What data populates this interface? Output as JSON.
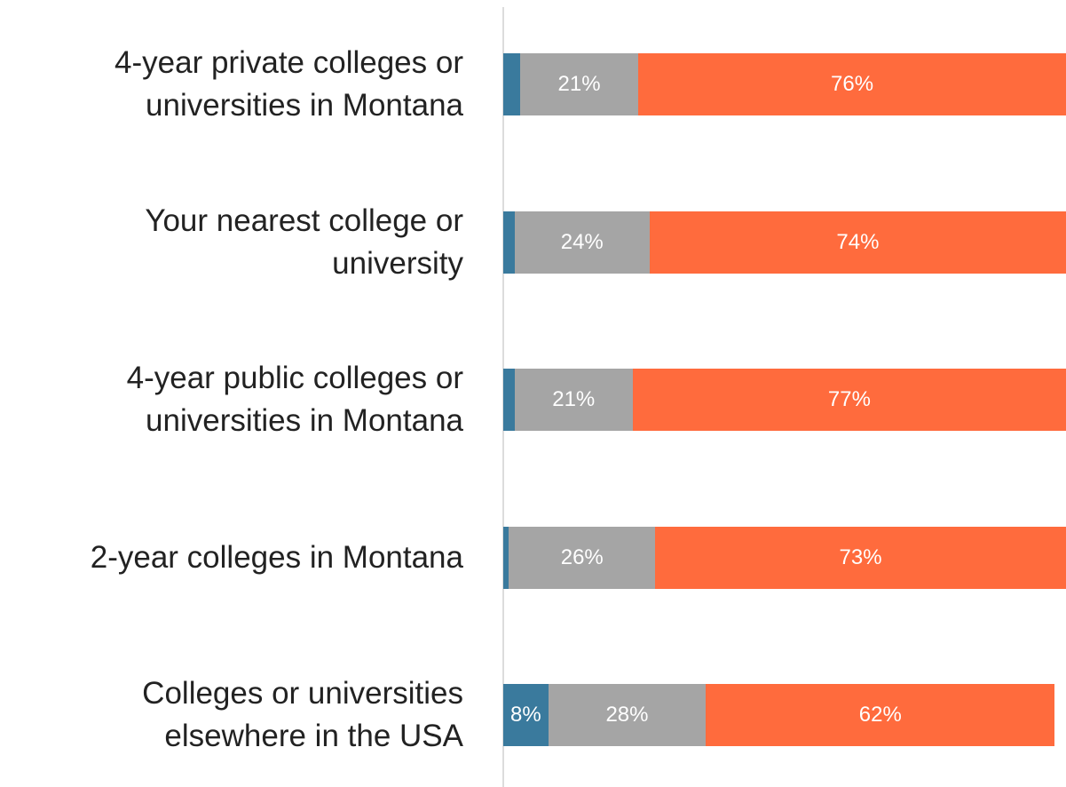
{
  "chart_data": {
    "type": "stacked_bar_horizontal",
    "categories": [
      "4-year private colleges or universities in Montana",
      "Your nearest college or university",
      "4-year public colleges or universities in Montana",
      "2-year colleges in Montana",
      "Colleges or universities elsewhere in the USA"
    ],
    "series": [
      {
        "color": "#3a7a9d",
        "values": [
          3,
          2,
          2,
          1,
          8
        ],
        "value_labels": [
          null,
          null,
          null,
          null,
          "8%"
        ]
      },
      {
        "color": "#a5a5a5",
        "values": [
          21,
          24,
          21,
          26,
          28
        ],
        "value_labels": [
          "21%",
          "24%",
          "21%",
          "26%",
          "28%"
        ]
      },
      {
        "color": "#ff6b3d",
        "values": [
          76,
          74,
          77,
          73,
          62
        ],
        "value_labels": [
          "76%",
          "74%",
          "77%",
          "73%",
          "62%"
        ]
      }
    ],
    "xlim": [
      0,
      100
    ]
  }
}
